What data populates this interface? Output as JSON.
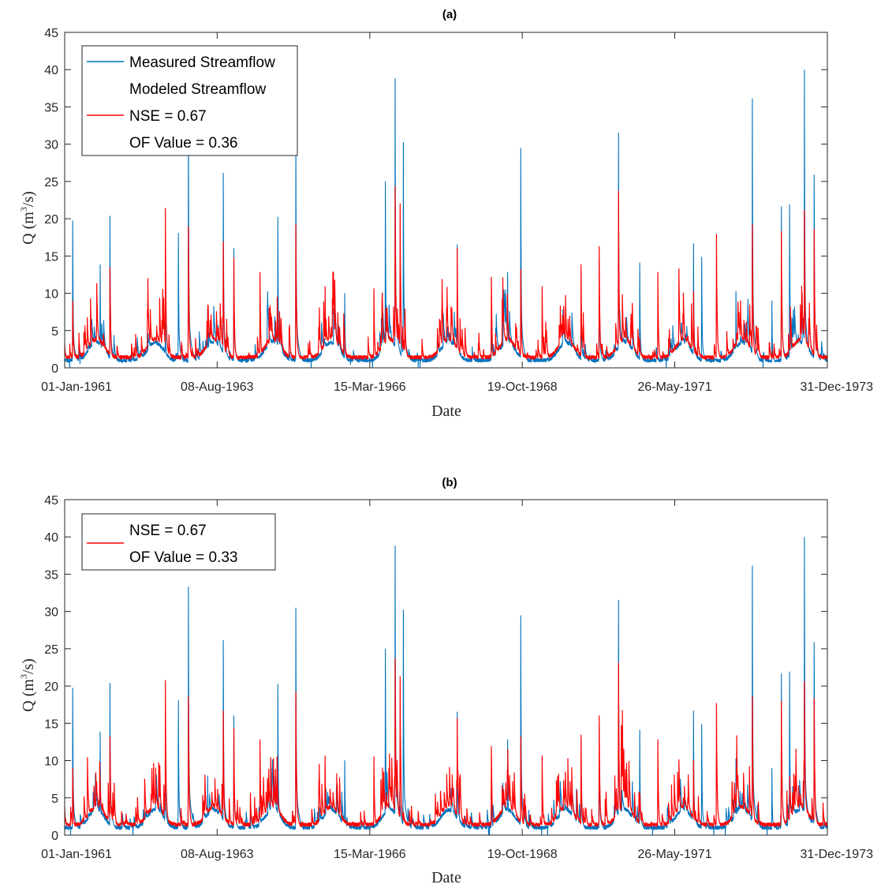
{
  "colors": {
    "measured": "#0072BD",
    "modeled": "#FF0000",
    "axis": "#262626"
  },
  "chart_data": [
    {
      "type": "line",
      "title": "(a)",
      "xlabel": "Date",
      "ylabel": "Q (m",
      "ylabel_sup": "3",
      "ylabel_end": "/s)",
      "ylim": [
        0,
        45
      ],
      "yticks": [
        0,
        5,
        10,
        15,
        20,
        25,
        30,
        35,
        40,
        45
      ],
      "xlim": [
        "1961-01-01",
        "1973-12-31"
      ],
      "xticks": [
        "01-Jan-1961",
        "08-Aug-1963",
        "15-Mar-1966",
        "19-Oct-1968",
        "26-May-1971",
        "31-Dec-1973"
      ],
      "legend": {
        "placement": "top-left",
        "entries": [
          "Measured Streamflow",
          "Modeled Streamflow",
          "NSE = 0.67",
          "OF Value = 0.36"
        ]
      },
      "series": [
        {
          "name": "Measured Streamflow",
          "peaks": [
            [
              "1961-02-20",
              15.4
            ],
            [
              "1961-08-10",
              10.8
            ],
            [
              "1961-10-10",
              15.9
            ],
            [
              "1962-09-20",
              5.8
            ],
            [
              "1962-12-10",
              14.1
            ],
            [
              "1963-02-10",
              26.0
            ],
            [
              "1963-06-10",
              6.2
            ],
            [
              "1963-09-15",
              20.4
            ],
            [
              "1963-11-20",
              12.5
            ],
            [
              "1964-08-20",
              15.8
            ],
            [
              "1964-12-10",
              23.8
            ],
            [
              "1965-10-10",
              7.8
            ],
            [
              "1966-06-20",
              19.5
            ],
            [
              "1966-08-20",
              30.3
            ],
            [
              "1966-10-10",
              23.6
            ],
            [
              "1967-09-10",
              12.9
            ],
            [
              "1968-04-10",
              6.0
            ],
            [
              "1968-07-20",
              10.0
            ],
            [
              "1968-10-10",
              23.0
            ],
            [
              "1969-10-20",
              10.0
            ],
            [
              "1970-02-10",
              11.4
            ],
            [
              "1970-06-10",
              24.6
            ],
            [
              "1970-10-20",
              11.0
            ],
            [
              "1971-09-20",
              13.0
            ],
            [
              "1971-11-10",
              11.6
            ],
            [
              "1972-06-10",
              8.0
            ],
            [
              "1972-09-20",
              28.2
            ],
            [
              "1973-01-20",
              7.0
            ],
            [
              "1973-03-20",
              16.9
            ],
            [
              "1973-05-10",
              17.1
            ],
            [
              "1973-08-10",
              31.2
            ],
            [
              "1973-10-10",
              20.2
            ]
          ]
        },
        {
          "name": "Modeled Streamflow",
          "peaks": [
            [
              "1961-02-20",
              7.0
            ],
            [
              "1961-10-10",
              10.5
            ],
            [
              "1962-09-20",
              16.7
            ],
            [
              "1963-02-10",
              14.8
            ],
            [
              "1963-09-15",
              13.2
            ],
            [
              "1963-11-20",
              11.5
            ],
            [
              "1964-05-01",
              10.0
            ],
            [
              "1964-12-10",
              15.0
            ],
            [
              "1965-06-10",
              8.5
            ],
            [
              "1966-04-10",
              8.3
            ],
            [
              "1966-08-20",
              19.0
            ],
            [
              "1966-09-20",
              17.2
            ],
            [
              "1967-09-10",
              12.5
            ],
            [
              "1968-04-10",
              9.5
            ],
            [
              "1968-10-10",
              10.3
            ],
            [
              "1969-02-20",
              8.5
            ],
            [
              "1969-10-20",
              10.8
            ],
            [
              "1970-02-10",
              12.7
            ],
            [
              "1970-06-10",
              18.5
            ],
            [
              "1971-02-10",
              10.0
            ],
            [
              "1971-09-20",
              8.0
            ],
            [
              "1972-02-10",
              14.0
            ],
            [
              "1972-09-20",
              15.0
            ],
            [
              "1973-03-20",
              14.3
            ],
            [
              "1973-08-10",
              16.5
            ],
            [
              "1973-10-10",
              14.5
            ]
          ]
        }
      ]
    },
    {
      "type": "line",
      "title": "(b)",
      "xlabel": "Date",
      "ylabel": "Q (m",
      "ylabel_sup": "3",
      "ylabel_end": "/s)",
      "ylim": [
        0,
        45
      ],
      "yticks": [
        0,
        5,
        10,
        15,
        20,
        25,
        30,
        35,
        40,
        45
      ],
      "xlim": [
        "1961-01-01",
        "1973-12-31"
      ],
      "xticks": [
        "01-Jan-1961",
        "08-Aug-1963",
        "15-Mar-1966",
        "19-Oct-1968",
        "26-May-1971",
        "31-Dec-1973"
      ],
      "legend": {
        "placement": "top-left",
        "entries": [
          "NSE = 0.67",
          "OF Value = 0.33"
        ]
      },
      "series": [
        {
          "name": "Measured Streamflow",
          "peaks": [
            [
              "1961-02-20",
              15.4
            ],
            [
              "1961-08-10",
              10.8
            ],
            [
              "1961-10-10",
              15.9
            ],
            [
              "1962-09-20",
              5.8
            ],
            [
              "1962-12-10",
              14.1
            ],
            [
              "1963-02-10",
              26.0
            ],
            [
              "1963-06-10",
              6.2
            ],
            [
              "1963-09-15",
              20.4
            ],
            [
              "1963-11-20",
              12.5
            ],
            [
              "1964-08-20",
              15.8
            ],
            [
              "1964-12-10",
              23.8
            ],
            [
              "1965-10-10",
              7.8
            ],
            [
              "1966-06-20",
              19.5
            ],
            [
              "1966-08-20",
              30.3
            ],
            [
              "1966-10-10",
              23.6
            ],
            [
              "1967-09-10",
              12.9
            ],
            [
              "1968-04-10",
              6.0
            ],
            [
              "1968-07-20",
              10.0
            ],
            [
              "1968-10-10",
              23.0
            ],
            [
              "1969-10-20",
              10.0
            ],
            [
              "1970-02-10",
              11.4
            ],
            [
              "1970-06-10",
              24.6
            ],
            [
              "1970-10-20",
              11.0
            ],
            [
              "1971-09-20",
              13.0
            ],
            [
              "1971-11-10",
              11.6
            ],
            [
              "1972-06-10",
              8.0
            ],
            [
              "1972-09-20",
              28.2
            ],
            [
              "1973-01-20",
              7.0
            ],
            [
              "1973-03-20",
              16.9
            ],
            [
              "1973-05-10",
              17.1
            ],
            [
              "1973-08-10",
              31.2
            ],
            [
              "1973-10-10",
              20.2
            ]
          ]
        },
        {
          "name": "Modeled Streamflow",
          "peaks": [
            [
              "1961-02-20",
              7.0
            ],
            [
              "1961-10-10",
              10.3
            ],
            [
              "1962-09-20",
              16.2
            ],
            [
              "1963-02-10",
              14.5
            ],
            [
              "1963-09-15",
              13.0
            ],
            [
              "1963-11-20",
              11.2
            ],
            [
              "1964-05-01",
              10.0
            ],
            [
              "1964-12-10",
              15.0
            ],
            [
              "1965-06-10",
              8.3
            ],
            [
              "1966-04-10",
              8.2
            ],
            [
              "1966-08-20",
              18.5
            ],
            [
              "1966-09-20",
              16.6
            ],
            [
              "1967-09-10",
              12.2
            ],
            [
              "1968-04-10",
              9.3
            ],
            [
              "1968-10-10",
              10.3
            ],
            [
              "1969-02-20",
              8.3
            ],
            [
              "1969-10-20",
              10.5
            ],
            [
              "1970-02-10",
              12.5
            ],
            [
              "1970-06-10",
              18.0
            ],
            [
              "1971-02-10",
              10.0
            ],
            [
              "1971-09-20",
              7.8
            ],
            [
              "1972-02-10",
              13.8
            ],
            [
              "1972-09-20",
              14.5
            ],
            [
              "1973-03-20",
              14.0
            ],
            [
              "1973-08-10",
              16.1
            ],
            [
              "1973-10-10",
              14.3
            ]
          ]
        }
      ]
    }
  ]
}
